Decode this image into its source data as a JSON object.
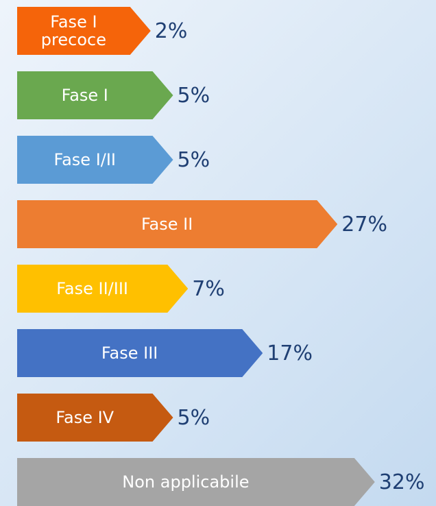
{
  "chart_data": {
    "type": "bar",
    "orientation": "horizontal",
    "categories": [
      "Fase I precoce",
      "Fase I",
      "Fase I/II",
      "Fase II",
      "Fase II/III",
      "Fase III",
      "Fase IV",
      "Non applicabile"
    ],
    "values": [
      2,
      5,
      5,
      27,
      7,
      17,
      5,
      32
    ],
    "value_labels": [
      "2%",
      "5%",
      "5%",
      "27%",
      "7%",
      "17%",
      "5%",
      "32%"
    ],
    "colors": [
      "#f5640a",
      "#6aa84f",
      "#5b9bd5",
      "#ed7d31",
      "#ffc000",
      "#4472c4",
      "#c55a11",
      "#a5a5a5"
    ]
  }
}
